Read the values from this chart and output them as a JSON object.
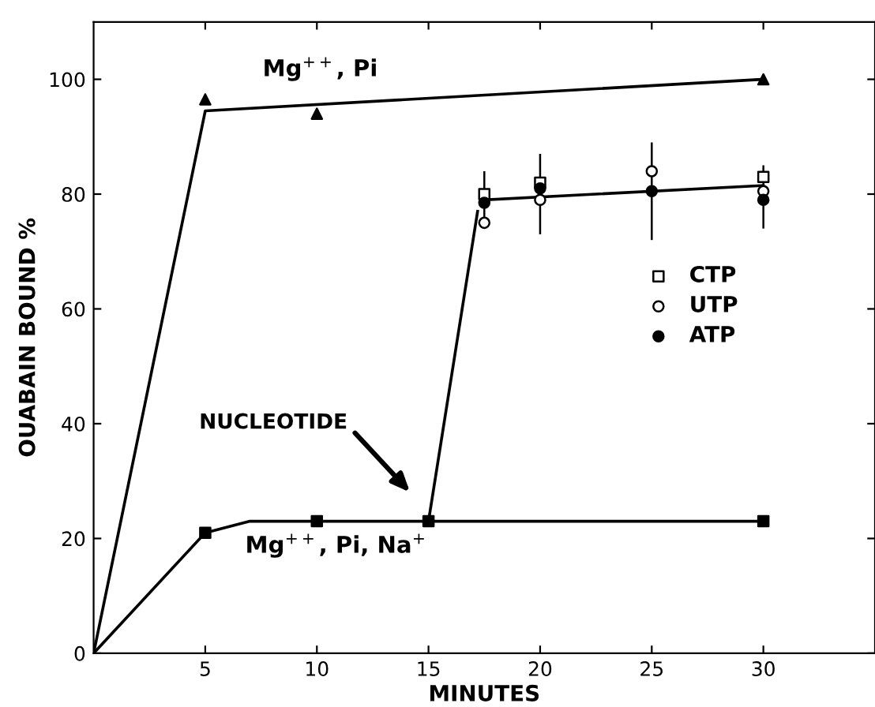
{
  "chart_data": {
    "type": "scatter",
    "xlabel": "MINUTES",
    "ylabel": "OUABAIN BOUND %",
    "xlim": [
      0,
      35
    ],
    "ylim": [
      0,
      110
    ],
    "xticks": [
      5,
      10,
      15,
      20,
      25,
      30
    ],
    "yticks": [
      0,
      20,
      40,
      60,
      80,
      100
    ],
    "grid": false,
    "legend": "right",
    "series": [
      {
        "type": "line",
        "color": "#000000",
        "marker": "none",
        "x": [
          0,
          5,
          30
        ],
        "values": [
          0,
          94.5,
          100
        ]
      },
      {
        "color": "#000000",
        "marker": "triangle",
        "x": [
          5,
          10,
          30
        ],
        "values": [
          96.5,
          94,
          100
        ]
      },
      {
        "type": "line",
        "color": "#000000",
        "marker": "none",
        "x": [
          0,
          5,
          7,
          15,
          30
        ],
        "values": [
          0,
          21,
          23,
          23,
          23
        ]
      },
      {
        "color": "#000000",
        "marker": "square",
        "x": [
          5,
          10,
          15,
          30
        ],
        "values": [
          21,
          23,
          23,
          23
        ]
      },
      {
        "type": "line",
        "color": "#000000",
        "marker": "none",
        "x": [
          15,
          17.2
        ],
        "values": [
          23,
          77
        ]
      },
      {
        "type": "line",
        "color": "#000000",
        "marker": "none",
        "x": [
          17.5,
          30
        ],
        "values": [
          79,
          81.5
        ]
      },
      {
        "name": "CTP",
        "color": "#ffffff",
        "marker": "square",
        "x": [
          17.5,
          20,
          25,
          30
        ],
        "values": [
          80,
          82,
          null,
          83
        ]
      },
      {
        "name": "UTP",
        "color": "#ffffff",
        "marker": "circle",
        "x": [
          17.5,
          20,
          25,
          30
        ],
        "values": [
          75,
          79,
          84,
          80.5
        ]
      },
      {
        "name": "ATP",
        "color": "#000000",
        "marker": "circle",
        "x": [
          17.5,
          20,
          25,
          30
        ],
        "values": [
          78.5,
          81,
          80.5,
          79
        ],
        "errors": [
          [
            74,
            84
          ],
          [
            73,
            87
          ],
          [
            72,
            89
          ],
          [
            74,
            85
          ]
        ]
      }
    ],
    "annotations": [
      "Mg$^{++}$, Pi",
      "Mg$^{++}$, Pi, Na$^{+}$",
      "NUCLEOTIDE"
    ]
  }
}
